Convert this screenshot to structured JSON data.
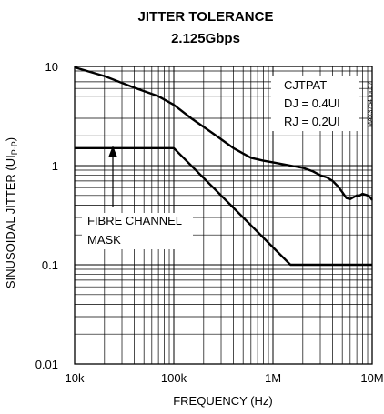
{
  "chart_data": {
    "type": "line",
    "title": "JITTER TOLERANCE",
    "subtitle": "2.125Gbps",
    "xlabel": "FREQUENCY (Hz)",
    "ylabel": "SINUSOIDAL JITTER (UI",
    "ylabel_subscript": "P-P",
    "ylabel_close": ")",
    "x_scale": "log",
    "y_scale": "log",
    "xlim": [
      10000,
      10000000
    ],
    "ylim": [
      0.01,
      10
    ],
    "grid": true,
    "x_ticks": [
      {
        "value": 10000,
        "label": "10k"
      },
      {
        "value": 100000,
        "label": "100k"
      },
      {
        "value": 1000000,
        "label": "1M"
      },
      {
        "value": 10000000,
        "label": "10M"
      }
    ],
    "y_ticks": [
      {
        "value": 10,
        "label": "10"
      },
      {
        "value": 1,
        "label": "1"
      },
      {
        "value": 0.1,
        "label": "0.1"
      },
      {
        "value": 0.01,
        "label": "0.01"
      }
    ],
    "series": [
      {
        "id": "measured",
        "x": [
          10000,
          20000,
          40000,
          70000,
          100000,
          150000,
          250000,
          400000,
          600000,
          800000,
          1000000,
          1500000,
          2000000,
          2500000,
          3000000,
          3500000,
          4000000,
          4500000,
          5000000,
          5500000,
          6000000,
          6500000,
          7000000,
          7500000,
          8000000,
          8500000,
          9000000,
          9500000,
          10000000
        ],
        "y": [
          9.8,
          8.0,
          6.1,
          5.0,
          4.1,
          3.0,
          2.1,
          1.5,
          1.2,
          1.12,
          1.08,
          1.0,
          0.95,
          0.88,
          0.8,
          0.76,
          0.7,
          0.62,
          0.54,
          0.47,
          0.46,
          0.48,
          0.5,
          0.5,
          0.52,
          0.51,
          0.5,
          0.48,
          0.45
        ]
      },
      {
        "id": "fibre-channel-mask",
        "x": [
          10000,
          100000,
          1500000,
          10000000
        ],
        "y": [
          1.5,
          1.5,
          0.1,
          0.1
        ]
      }
    ],
    "annotations": {
      "legend_lines": [
        "CJTPAT",
        "DJ = 0.4UI",
        "RJ = 0.2UI"
      ],
      "mask_lines": [
        "FIBRE CHANNEL",
        "MASK"
      ],
      "side_tag": "MAX3754 toc07"
    }
  }
}
